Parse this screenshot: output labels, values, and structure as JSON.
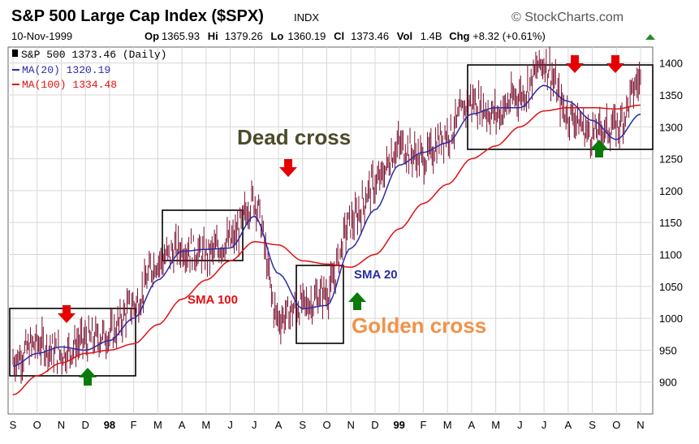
{
  "header": {
    "title": "S&P 500 Large Cap Index ($SPX)",
    "exchange": "INDX",
    "brand": "© StockCharts.com",
    "date": "10-Nov-1999",
    "quote": [
      {
        "label": "Op",
        "value": "1365.93"
      },
      {
        "label": "Hi",
        "value": "1379.26"
      },
      {
        "label": "Lo",
        "value": "1360.19"
      },
      {
        "label": "Cl",
        "value": "1373.46"
      },
      {
        "label": "Vol",
        "value": "1.4B"
      },
      {
        "label": "Chg",
        "value": "+8.32 (+0.61%)"
      }
    ]
  },
  "legend": {
    "price": "S&P 500 1373.46 (Daily)",
    "ma20": "MA(20) 1320.19",
    "ma100": "MA(100) 1334.48"
  },
  "annotations": {
    "dead_cross": "Dead cross",
    "golden_cross": "Golden cross",
    "sma100": "SMA 100",
    "sma20": "SMA 20"
  },
  "colors": {
    "price": "#7a0f2e",
    "ma20": "#2a2aa8",
    "ma100": "#e01010",
    "dead_cross_text": "#4b4b2a",
    "golden_cross_text": "#f0924a",
    "arrow_down": "#e60000",
    "arrow_up": "#0a7a0a",
    "grid": "#d8d8d8"
  },
  "chart_data": {
    "type": "line",
    "title": "S&P 500 Large Cap Index ($SPX)",
    "xlabel": "",
    "ylabel": "",
    "ylim": [
      850,
      1425
    ],
    "yticks": [
      900,
      950,
      1000,
      1050,
      1100,
      1150,
      1200,
      1250,
      1300,
      1350,
      1400
    ],
    "grid": true,
    "legend_position": "top-left",
    "x_tick_labels": [
      "S",
      "O",
      "N",
      "D",
      "98",
      "F",
      "M",
      "A",
      "M",
      "J",
      "J",
      "A",
      "S",
      "O",
      "N",
      "D",
      "99",
      "F",
      "M",
      "A",
      "M",
      "J",
      "J",
      "A",
      "S",
      "O",
      "N"
    ],
    "x": [
      "1997-09",
      "1997-10",
      "1997-11",
      "1997-12",
      "1998-01",
      "1998-02",
      "1998-03",
      "1998-04",
      "1998-05",
      "1998-06",
      "1998-07",
      "1998-08",
      "1998-09",
      "1998-10",
      "1998-11",
      "1998-12",
      "1999-01",
      "1999-02",
      "1999-03",
      "1999-04",
      "1999-05",
      "1999-06",
      "1999-07",
      "1999-08",
      "1999-09",
      "1999-10",
      "1999-11"
    ],
    "series": [
      {
        "name": "S&P 500 1373.46 (Daily)",
        "values": [
          935,
          960,
          945,
          965,
          975,
          1020,
          1090,
          1110,
          1100,
          1120,
          1185,
          1000,
          1020,
          1040,
          1150,
          1210,
          1270,
          1250,
          1290,
          1340,
          1320,
          1350,
          1400,
          1320,
          1290,
          1300,
          1373
        ]
      },
      {
        "name": "MA(20) 1320.19",
        "values": [
          925,
          945,
          955,
          950,
          965,
          1000,
          1060,
          1105,
          1108,
          1110,
          1160,
          1070,
          1015,
          1020,
          1110,
          1170,
          1240,
          1260,
          1275,
          1320,
          1330,
          1330,
          1365,
          1340,
          1310,
          1280,
          1320
        ]
      },
      {
        "name": "MA(100) 1334.48",
        "values": [
          880,
          910,
          930,
          945,
          950,
          960,
          990,
          1030,
          1060,
          1090,
          1120,
          1115,
          1090,
          1085,
          1080,
          1100,
          1140,
          1180,
          1210,
          1250,
          1270,
          1300,
          1325,
          1330,
          1330,
          1328,
          1334
        ]
      }
    ],
    "annotations": [
      "Dead cross",
      "Golden cross",
      "SMA 100",
      "SMA 20"
    ]
  }
}
